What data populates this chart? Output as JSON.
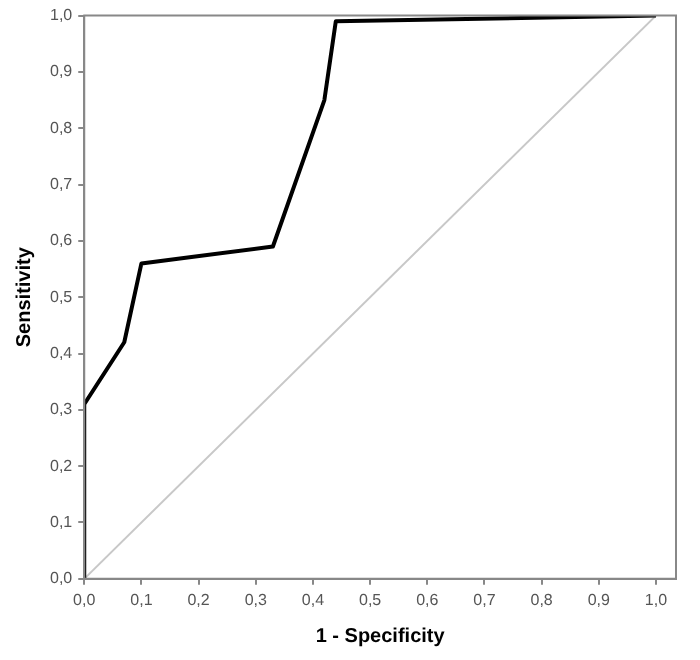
{
  "chart_data": {
    "type": "line",
    "xlabel": "1 - Specificity",
    "ylabel": "Sensitivity",
    "series": [
      {
        "color": "#000000",
        "x": [
          0,
          0,
          0.07,
          0.1,
          0.33,
          0.42,
          0.44,
          1.0
        ],
        "values": [
          0,
          0.31,
          0.42,
          0.56,
          0.59,
          0.85,
          0.99,
          1.0
        ]
      },
      {
        "color": "#c8c8c8",
        "x": [
          0,
          1
        ],
        "values": [
          0,
          1
        ]
      }
    ],
    "xlim": [
      0,
      1.035
    ],
    "ylim": [
      0,
      1
    ],
    "xticks": [
      {
        "value": 0,
        "label": "0,0"
      },
      {
        "value": 0.1,
        "label": "0,1"
      },
      {
        "value": 0.2,
        "label": "0,2"
      },
      {
        "value": 0.3,
        "label": "0,3"
      },
      {
        "value": 0.4,
        "label": "0,4"
      },
      {
        "value": 0.5,
        "label": "0,5"
      },
      {
        "value": 0.6,
        "label": "0,6"
      },
      {
        "value": 0.7,
        "label": "0,7"
      },
      {
        "value": 0.8,
        "label": "0,8"
      },
      {
        "value": 0.9,
        "label": "0,9"
      },
      {
        "value": 1,
        "label": "1,0"
      }
    ],
    "yticks": [
      {
        "value": 0,
        "label": "0,0"
      },
      {
        "value": 0.1,
        "label": "0,1"
      },
      {
        "value": 0.2,
        "label": "0,2"
      },
      {
        "value": 0.3,
        "label": "0,3"
      },
      {
        "value": 0.4,
        "label": "0,4"
      },
      {
        "value": 0.5,
        "label": "0,5"
      },
      {
        "value": 0.6,
        "label": "0,6"
      },
      {
        "value": 0.7,
        "label": "0,7"
      },
      {
        "value": 0.8,
        "label": "0,8"
      },
      {
        "value": 0.9,
        "label": "0,9"
      },
      {
        "value": 1,
        "label": "1,0"
      }
    ],
    "grid": false,
    "legend": false,
    "marker": "none",
    "line_style": "solid"
  }
}
